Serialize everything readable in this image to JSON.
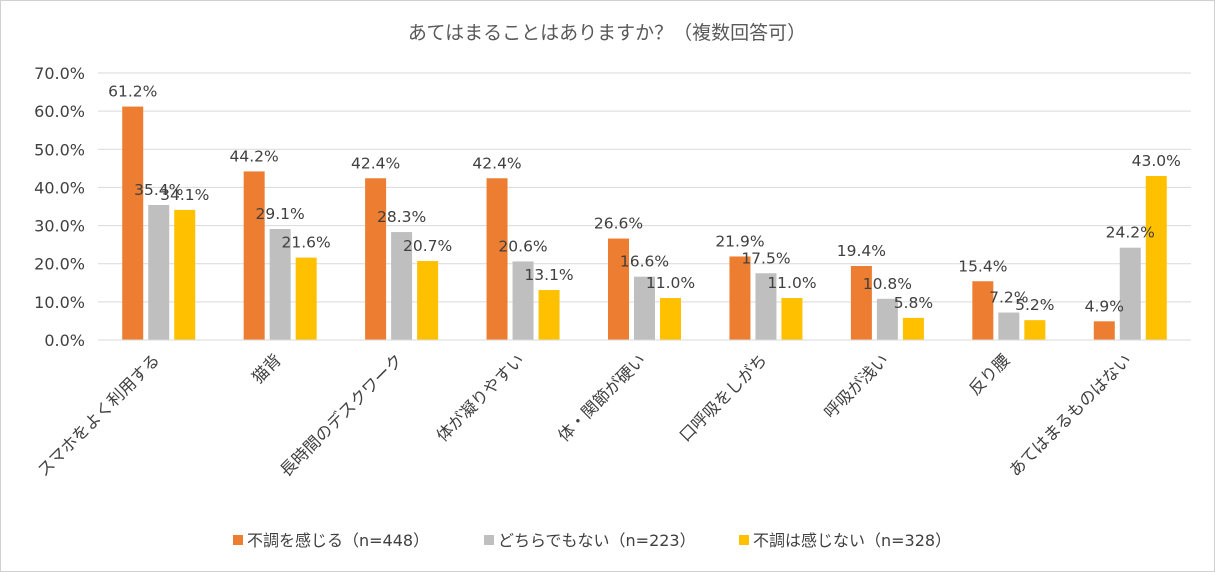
{
  "chart_data": {
    "type": "bar",
    "title": "あてはまることはありますか？（複数回答可）",
    "xlabel": "",
    "ylabel": "",
    "ylim": [
      0,
      70
    ],
    "yticks": [
      "0.0%",
      "10.0%",
      "20.0%",
      "30.0%",
      "40.0%",
      "50.0%",
      "60.0%",
      "70.0%"
    ],
    "grid": true,
    "legend_position": "bottom",
    "categories": [
      "スマホをよく利用する",
      "猫背",
      "長時間のデスクワーク",
      "体が凝りやすい",
      "体・関節が硬い",
      "口呼吸をしがち",
      "呼吸が浅い",
      "反り腰",
      "あてはまるものはない"
    ],
    "series": [
      {
        "name": "不調を感じる（n=448）",
        "color": "#ED7D31",
        "values": [
          61.2,
          44.2,
          42.4,
          42.4,
          26.6,
          21.9,
          19.4,
          15.4,
          4.9
        ],
        "labels": [
          "61.2%",
          "44.2%",
          "42.4%",
          "42.4%",
          "26.6%",
          "21.9%",
          "19.4%",
          "15.4%",
          "4.9%"
        ]
      },
      {
        "name": "どちらでもない（n=223）",
        "color": "#BFBFBF",
        "values": [
          35.4,
          29.1,
          28.3,
          20.6,
          16.6,
          17.5,
          10.8,
          7.2,
          24.2
        ],
        "labels": [
          "35.4%",
          "29.1%",
          "28.3%",
          "20.6%",
          "16.6%",
          "17.5%",
          "10.8%",
          "7.2%",
          "24.2%"
        ]
      },
      {
        "name": "不調は感じない（n=328）",
        "color": "#FFC000",
        "values": [
          34.1,
          21.6,
          20.7,
          13.1,
          11.0,
          11.0,
          5.8,
          5.2,
          43.0
        ],
        "labels": [
          "34.1%",
          "21.6%",
          "20.7%",
          "13.1%",
          "11.0%",
          "11.0%",
          "5.8%",
          "5.2%",
          "43.0%"
        ]
      }
    ]
  }
}
